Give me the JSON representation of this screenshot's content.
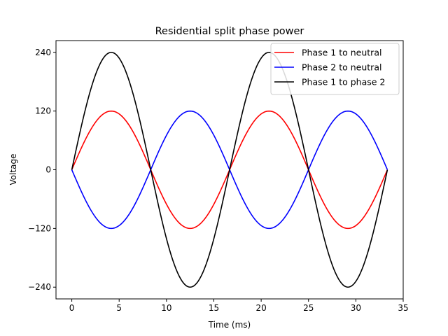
{
  "chart_data": {
    "type": "line",
    "title": "Residential split phase power",
    "xlabel": "Time (ms)",
    "ylabel": "Voltage",
    "xlim": [
      -1.67,
      35
    ],
    "ylim": [
      -264,
      264
    ],
    "xticks": [
      0,
      5,
      10,
      15,
      20,
      25,
      30,
      35
    ],
    "xtick_labels": [
      "0",
      "5",
      "10",
      "15",
      "20",
      "25",
      "30",
      "35"
    ],
    "yticks": [
      -240,
      -120,
      0,
      120,
      240
    ],
    "ytick_labels": [
      "−240",
      "−120",
      "0",
      "120",
      "240"
    ],
    "grid": false,
    "legend_position": "top-right",
    "x_start": 0,
    "x_end": 33.33,
    "sample_count": 201,
    "series": [
      {
        "name": "Phase 1 to neutral",
        "color": "#ff0000",
        "amplitude": 120,
        "frequency_hz": 60,
        "phase_sign": 1
      },
      {
        "name": "Phase 2 to neutral",
        "color": "#0000ff",
        "amplitude": 120,
        "frequency_hz": 60,
        "phase_sign": -1
      },
      {
        "name": "Phase 1 to phase 2",
        "color": "#000000",
        "amplitude": 240,
        "frequency_hz": 60,
        "phase_sign": 1
      }
    ]
  }
}
